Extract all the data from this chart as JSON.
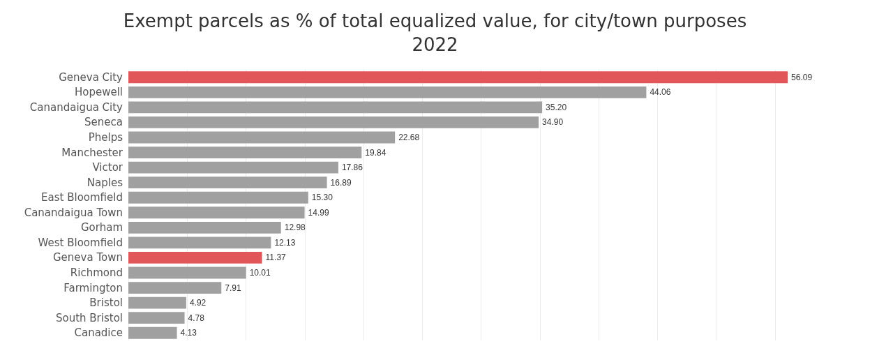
{
  "chart_data": {
    "type": "bar",
    "orientation": "horizontal",
    "title": "Exempt parcels as % of total equalized value, for city/town purposes",
    "subtitle": "2022",
    "categories": [
      "Geneva City",
      "Hopewell",
      "Canandaigua City",
      "Seneca",
      "Phelps",
      "Manchester",
      "Victor",
      "Naples",
      "East Bloomfield",
      "Canandaigua Town",
      "Gorham",
      "West Bloomfield",
      "Geneva Town",
      "Richmond",
      "Farmington",
      "Bristol",
      "South Bristol",
      "Canadice"
    ],
    "values": [
      56.09,
      44.06,
      35.2,
      34.9,
      22.68,
      19.84,
      17.86,
      16.89,
      15.3,
      14.99,
      12.98,
      12.13,
      11.37,
      10.01,
      7.91,
      4.92,
      4.78,
      4.13
    ],
    "value_labels": [
      "56.09",
      "44.06",
      "35.20",
      "34.90",
      "22.68",
      "19.84",
      "17.86",
      "16.89",
      "15.30",
      "14.99",
      "12.98",
      "12.13",
      "11.37",
      "10.01",
      "7.91",
      "4.92",
      "4.78",
      "4.13"
    ],
    "colors": [
      "#e15759",
      "#a0a0a0",
      "#a0a0a0",
      "#a0a0a0",
      "#a0a0a0",
      "#a0a0a0",
      "#a0a0a0",
      "#a0a0a0",
      "#a0a0a0",
      "#a0a0a0",
      "#a0a0a0",
      "#a0a0a0",
      "#e15759",
      "#a0a0a0",
      "#a0a0a0",
      "#a0a0a0",
      "#a0a0a0",
      "#a0a0a0"
    ],
    "xticks": [
      {
        "value": 0,
        "label": null
      },
      {
        "value": 5,
        "label": null
      },
      {
        "value": 10,
        "label": null
      },
      {
        "value": 15,
        "label": null
      },
      {
        "value": 20,
        "label": null
      },
      {
        "value": 25,
        "label": null
      },
      {
        "value": 30,
        "label": null
      },
      {
        "value": 35,
        "label": null
      },
      {
        "value": 40,
        "label": null
      },
      {
        "value": 45,
        "label": null
      },
      {
        "value": 50,
        "label": null
      },
      {
        "value": 55,
        "label": null
      }
    ],
    "grid": "x",
    "tick_labels": "y"
  }
}
